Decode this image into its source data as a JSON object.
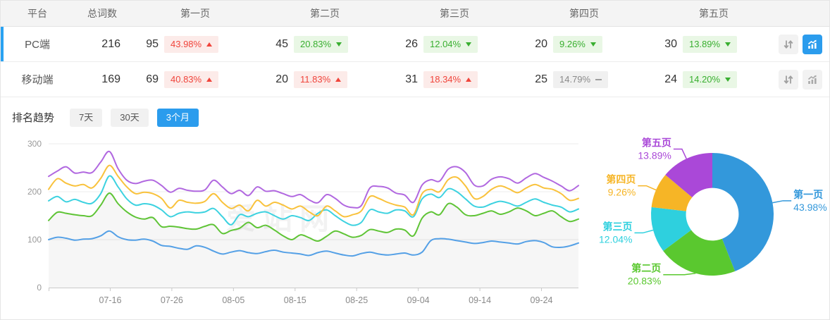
{
  "table": {
    "headers": [
      "平台",
      "总词数",
      "第一页",
      "第二页",
      "第三页",
      "第四页",
      "第五页"
    ],
    "rows": [
      {
        "platform": "PC端",
        "total": "216",
        "active": true,
        "pages": [
          {
            "count": "95",
            "pct": "43.98%",
            "dir": "up",
            "tone": "red"
          },
          {
            "count": "45",
            "pct": "20.83%",
            "dir": "down",
            "tone": "green"
          },
          {
            "count": "26",
            "pct": "12.04%",
            "dir": "down",
            "tone": "green"
          },
          {
            "count": "20",
            "pct": "9.26%",
            "dir": "down",
            "tone": "green"
          },
          {
            "count": "30",
            "pct": "13.89%",
            "dir": "down",
            "tone": "green"
          }
        ]
      },
      {
        "platform": "移动端",
        "total": "169",
        "active": false,
        "pages": [
          {
            "count": "69",
            "pct": "40.83%",
            "dir": "up",
            "tone": "red"
          },
          {
            "count": "20",
            "pct": "11.83%",
            "dir": "up",
            "tone": "red"
          },
          {
            "count": "31",
            "pct": "18.34%",
            "dir": "up",
            "tone": "red"
          },
          {
            "count": "25",
            "pct": "14.79%",
            "dir": "flat",
            "tone": "gray"
          },
          {
            "count": "24",
            "pct": "14.20%",
            "dir": "down",
            "tone": "green"
          }
        ]
      }
    ]
  },
  "trend": {
    "title": "排名趋势",
    "tabs": [
      {
        "label": "7天",
        "active": false
      },
      {
        "label": "30天",
        "active": false
      },
      {
        "label": "3个月",
        "active": true
      }
    ]
  },
  "watermark": "爱站网",
  "colors": {
    "accent_blue": "#2b9ced",
    "badge_red": "#f0443b",
    "badge_green": "#39af30"
  },
  "chart_data": [
    {
      "type": "line",
      "title": "排名趋势 3个月",
      "ylim": [
        0,
        300
      ],
      "yticks": [
        0,
        100,
        200,
        300
      ],
      "x_ticks": [
        "07-16",
        "07-26",
        "08-05",
        "08-15",
        "08-25",
        "09-04",
        "09-14",
        "09-24"
      ],
      "tick_days": [
        10,
        20,
        30,
        40,
        50,
        60,
        70,
        80
      ],
      "total_days": 86,
      "grid": true,
      "series": [
        {
          "name": "第一页",
          "color": "#54a0e6",
          "fill": false,
          "values": [
            100,
            105,
            103,
            99,
            101,
            102,
            108,
            118,
            106,
            100,
            99,
            101,
            97,
            88,
            86,
            82,
            80,
            87,
            84,
            76,
            70,
            74,
            77,
            73,
            71,
            75,
            78,
            74,
            72,
            70,
            67,
            73,
            76,
            72,
            68,
            66,
            71,
            74,
            70,
            68,
            70,
            72,
            68,
            74,
            98,
            102,
            101,
            98,
            95,
            92,
            94,
            97,
            95,
            93,
            91,
            96,
            98,
            94,
            85,
            84,
            87,
            93
          ]
        },
        {
          "name": "第二页",
          "color": "#5fc436",
          "fill": true,
          "values": [
            140,
            157,
            155,
            152,
            150,
            150,
            172,
            197,
            175,
            158,
            147,
            143,
            146,
            127,
            128,
            126,
            123,
            122,
            128,
            131,
            113,
            119,
            124,
            136,
            125,
            130,
            120,
            108,
            100,
            110,
            104,
            97,
            107,
            118,
            112,
            105,
            109,
            121,
            118,
            115,
            122,
            120,
            108,
            145,
            158,
            152,
            175,
            168,
            152,
            150,
            155,
            160,
            153,
            158,
            166,
            160,
            150,
            155,
            160,
            148,
            138,
            143
          ]
        },
        {
          "name": "第三页",
          "color": "#3dd2e0",
          "fill": false,
          "values": [
            181,
            190,
            179,
            184,
            178,
            176,
            196,
            233,
            210,
            185,
            172,
            175,
            172,
            162,
            148,
            155,
            158,
            156,
            158,
            165,
            148,
            131,
            152,
            148,
            155,
            158,
            150,
            143,
            150,
            146,
            140,
            155,
            162,
            150,
            138,
            130,
            136,
            162,
            158,
            155,
            162,
            160,
            148,
            185,
            195,
            188,
            206,
            200,
            185,
            170,
            168,
            175,
            180,
            176,
            170,
            178,
            185,
            178,
            172,
            168,
            158,
            164
          ]
        },
        {
          "name": "第四页",
          "color": "#f9c23c",
          "fill": false,
          "values": [
            205,
            227,
            218,
            212,
            215,
            208,
            228,
            255,
            232,
            210,
            196,
            199,
            196,
            186,
            166,
            182,
            178,
            176,
            180,
            196,
            178,
            165,
            172,
            160,
            182,
            170,
            178,
            172,
            164,
            170,
            158,
            150,
            170,
            160,
            148,
            152,
            160,
            190,
            186,
            178,
            172,
            168,
            152,
            196,
            205,
            200,
            225,
            230,
            212,
            186,
            190,
            205,
            212,
            206,
            198,
            208,
            215,
            208,
            205,
            196,
            182,
            186
          ]
        },
        {
          "name": "第五页",
          "color": "#b168e0",
          "fill": false,
          "values": [
            232,
            243,
            252,
            239,
            241,
            240,
            262,
            284,
            248,
            224,
            217,
            222,
            224,
            213,
            199,
            207,
            203,
            201,
            204,
            224,
            210,
            196,
            203,
            192,
            210,
            201,
            202,
            196,
            190,
            194,
            183,
            177,
            194,
            186,
            172,
            167,
            171,
            208,
            211,
            208,
            197,
            193,
            178,
            214,
            225,
            222,
            247,
            252,
            240,
            214,
            212,
            226,
            231,
            227,
            218,
            229,
            238,
            230,
            222,
            212,
            202,
            213
          ]
        }
      ]
    },
    {
      "type": "pie",
      "labels": [
        "第一页",
        "第二页",
        "第三页",
        "第四页",
        "第五页"
      ],
      "values": [
        43.98,
        20.83,
        12.04,
        9.26,
        13.89
      ],
      "value_labels": [
        "43.98%",
        "20.83%",
        "12.04%",
        "9.26%",
        "13.89%"
      ],
      "colors": [
        "#3398db",
        "#5ac82f",
        "#2ed0de",
        "#f6b526",
        "#aa48d8"
      ],
      "inner_radius_ratio": 0.43,
      "legend_position": "outside-callout"
    }
  ]
}
